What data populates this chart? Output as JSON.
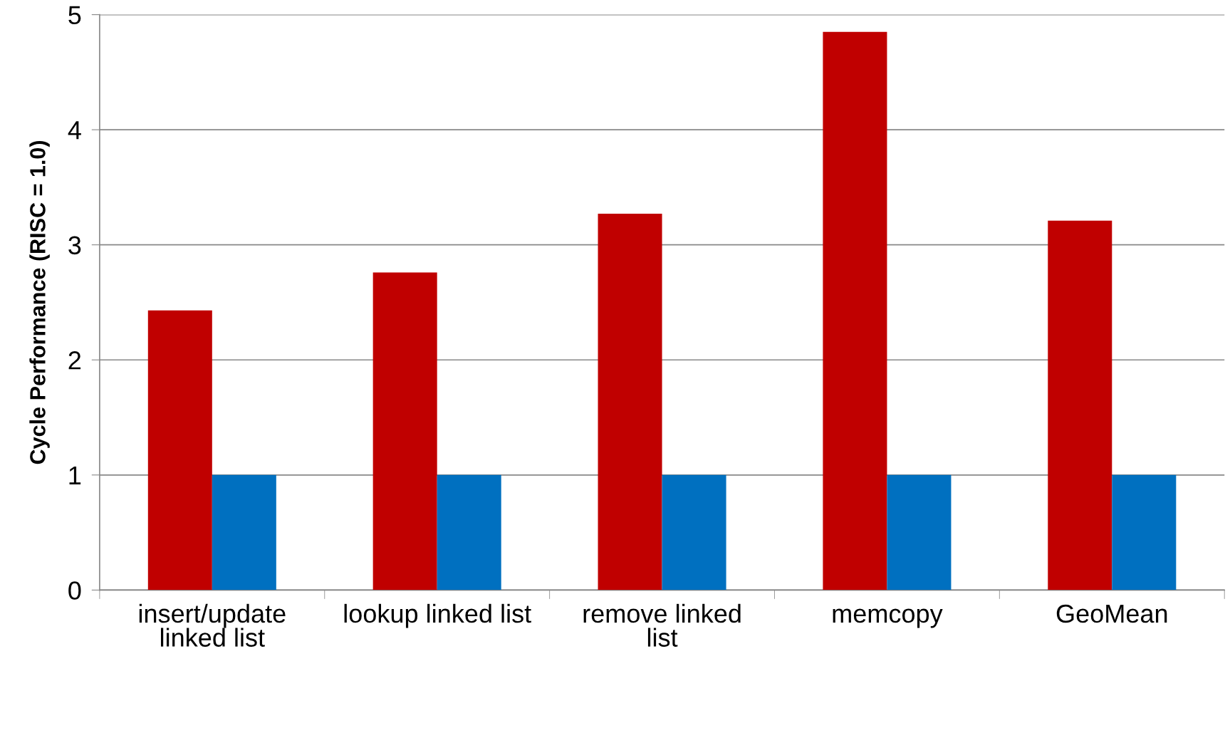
{
  "chart_data": {
    "type": "bar",
    "ylabel": "Cycle Performance (RISC = 1.0)",
    "categories": [
      "insert/update\nlinked list",
      "lookup linked list",
      "remove linked\nlist",
      "memcopy",
      "GeoMean"
    ],
    "series": [
      {
        "color": "#c00000",
        "values": [
          2.43,
          2.76,
          3.27,
          4.85,
          3.21
        ]
      },
      {
        "color": "#0070c0",
        "values": [
          1,
          1,
          1,
          1,
          1
        ]
      }
    ],
    "ylim": [
      0,
      5
    ],
    "yticks": [
      0,
      1,
      2,
      3,
      4,
      5
    ],
    "grid": "y",
    "legend": false
  }
}
